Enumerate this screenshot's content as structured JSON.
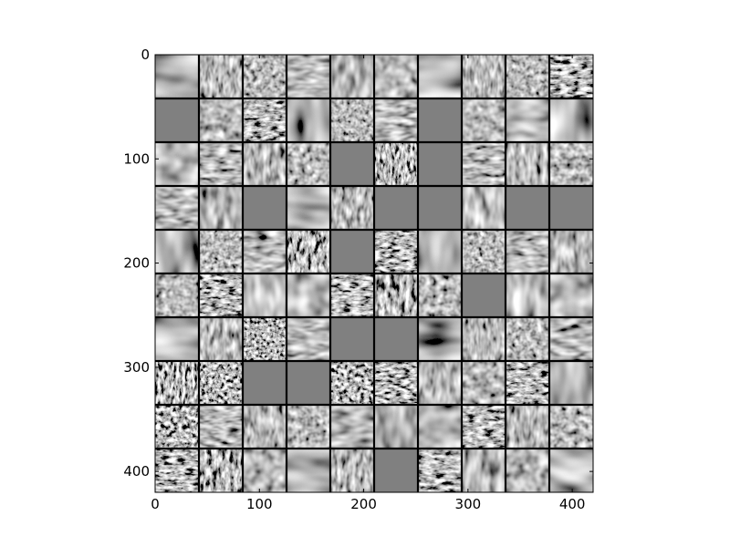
{
  "chart_data": {
    "type": "heatmap",
    "title": "",
    "xlabel": "",
    "ylabel": "",
    "description_kind": "image-grid",
    "grid": {
      "rows": 10,
      "cols": 10
    },
    "xlim": [
      0,
      420
    ],
    "ylim": [
      420,
      0
    ],
    "x_ticks": [
      0,
      100,
      200,
      300,
      400
    ],
    "y_ticks": [
      0,
      100,
      200,
      300,
      400
    ],
    "x_tick_labels": [
      "0",
      "100",
      "200",
      "300",
      "400"
    ],
    "y_tick_labels": [
      "0",
      "100",
      "200",
      "300",
      "400"
    ],
    "colormap": "gray",
    "separator_color": "#000000",
    "flat_tiles": [
      [
        1,
        0
      ],
      [
        1,
        6
      ],
      [
        2,
        4
      ],
      [
        2,
        6
      ],
      [
        3,
        2
      ],
      [
        3,
        5
      ],
      [
        3,
        6
      ],
      [
        3,
        8
      ],
      [
        3,
        9
      ],
      [
        4,
        4
      ],
      [
        5,
        7
      ],
      [
        6,
        4
      ],
      [
        6,
        5
      ],
      [
        7,
        2
      ],
      [
        7,
        3
      ],
      [
        9,
        5
      ]
    ],
    "busy_tiles": [
      [
        0,
        9
      ],
      [
        1,
        2
      ],
      [
        2,
        5
      ],
      [
        4,
        3
      ],
      [
        4,
        5
      ],
      [
        5,
        1
      ],
      [
        5,
        4
      ],
      [
        5,
        5
      ],
      [
        6,
        2
      ],
      [
        6,
        5
      ],
      [
        7,
        0
      ],
      [
        7,
        1
      ],
      [
        7,
        4
      ],
      [
        7,
        5
      ],
      [
        7,
        8
      ],
      [
        8,
        0
      ],
      [
        8,
        7
      ],
      [
        9,
        0
      ],
      [
        9,
        1
      ],
      [
        9,
        6
      ]
    ]
  }
}
